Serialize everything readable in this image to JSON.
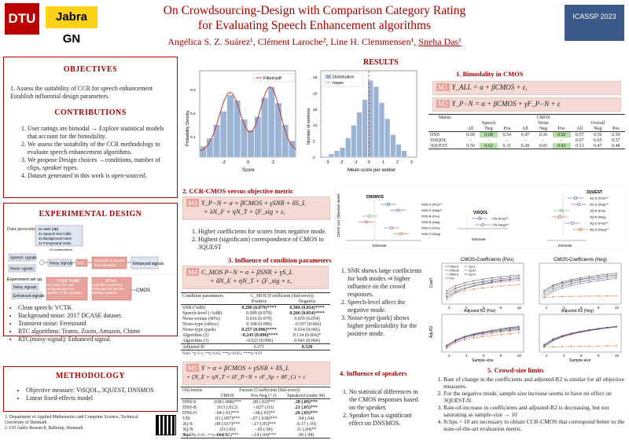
{
  "header": {
    "title_line1": "On Crowdsourcing-Design with Comparison Category Rating",
    "title_line2": "for Evaluating Speech Enhancement algorithms",
    "authors_prefix": "Angélica S. Z. Suárez¹, Clément Laroche², Line H. Clemmensen¹, ",
    "authors_underlined": "Sneha Das¹",
    "logo_dtu": "DTU",
    "logo_jabra": "Jabra GN",
    "logo_conf": "ICASSP 2023"
  },
  "objectives": {
    "heading": "OBJECTIVES",
    "items": [
      "1. Assess the suitability of CCR for speech enhancement",
      "Establish influential design parameters."
    ]
  },
  "contributions": {
    "heading": "CONTRIBUTIONS",
    "items": [
      "User ratings are bimodal → Explore statistical models that account for the bimodality.",
      "We assess the suitability of the CCR methodology to evaluate speech enhancement algorithms.",
      "We propose Design choices →conditions, number of clips, speaker types.",
      "Dataset generated in this work is open-sourced."
    ]
  },
  "experimental": {
    "heading": "EXPERIMENTAL DESIGN",
    "diagram": {
      "data_generation": "Data generation",
      "gen_lines": [
        "2x SNR (dB)",
        "2x Speech level (dB)",
        "3x Background noise",
        "1x Foreground noise"
      ],
      "combinations": "24 combinations",
      "speech_signals": "Speech signals",
      "noise_signals": "Noise signals",
      "noisy_signals": "Noisy signals",
      "rtc": "RTC",
      "playback": "Playback & Record",
      "normalisation": "Normalisation",
      "enhanced_signals": "Enhanced signals",
      "experiment_setup": "Experiment set up",
      "noisy_signals2": "Noisy signals",
      "enhanced_signals2": "Enhanced signals",
      "p808": "P.808 Toolkit",
      "p808_text": "Set audio files and configurations Run statistics of the answers",
      "mturk": "MTurk",
      "mturk_text": "Load files created by P.808 and run the test Manage answers",
      "cmos": "CMOS"
    },
    "bullets": [
      "Clean speech: VCTK",
      "Background noise: 2017 DCASE dataset.",
      "Transient noise: Freesound",
      "RTC algorithms: Teams, Zoom, Amazon, Chime",
      "RTC(noisy-signal): Enhanced signal."
    ]
  },
  "methodology": {
    "heading": "METHODOLOGY",
    "bullets": [
      "Objective measure: ViSQOL, 3QUEST, DNSMOS",
      "Linear fixed-effects model"
    ]
  },
  "affiliations": [
    "1. Department of Applied Mathematics and Computer Science, Technical University of Denmark",
    "2. GN Audio Research, Ballerup, Denmark"
  ],
  "results": {
    "heading": "RESULTS",
    "hist1": {
      "legend": "Fitted pdf",
      "xlabel": "Score",
      "ylabel": "Probability Density",
      "xticks": [
        "-2",
        "0",
        "2"
      ],
      "yticks": [
        "0.1",
        "0.2",
        "0.3"
      ]
    },
    "hist2": {
      "legend1": "Distribution",
      "legend2": "mean",
      "xlabel": "Mean score per worker",
      "ylabel": "Number of workers",
      "xticks": [
        "-3",
        "-2",
        "-1",
        "0",
        "1",
        "2",
        "3"
      ],
      "yticks": [
        "0",
        "5",
        "10",
        "15",
        "20",
        "25"
      ]
    },
    "bimodality": {
      "heading": "1. Bimodality in CMOS",
      "m1_tag": "M1",
      "m1": "Y_ALL = α + βCMOS + ε,",
      "m2_tag": "M2",
      "m2": "Y_P−N = α + βCMOS + γF_P−N + ε",
      "table": {
        "metric_label": "Metric",
        "cmos_label": "CMOS",
        "groups": [
          "Speech",
          "Noise",
          "Overall"
        ],
        "cols": [
          "All",
          "Neg",
          "Pos",
          "All",
          "Neg",
          "Pos",
          "All",
          "Neg",
          "Pos"
        ],
        "rows": [
          {
            "name": "DNS",
            "vals": [
              "0.69",
              "0.68",
              "0.54",
              "0.47",
              "0.36",
              "0.50",
              "0.57",
              "0.56",
              "0.50"
            ]
          },
          {
            "name": "ViSQOL",
            "vals": [
              "-",
              "-",
              "-",
              "-",
              "-",
              "-",
              "0.67",
              "0.65",
              "0.57"
            ]
          },
          {
            "name": "3QUEST",
            "vals": [
              "0.50",
              "0.62",
              "0.31",
              "0.28",
              "0.05",
              "0.43",
              "0.53",
              "0.47",
              "0.48"
            ]
          }
        ]
      }
    },
    "ccr": {
      "heading": "2. CCR-CMOS versus objective metric",
      "m3_tag": "M3",
      "m3_l1": "Y_P−N = α + βCMOS + γSNR + δS_L",
      "m3_l2": "+ λN_F + ηN_T + ζF_sig + ε,",
      "points": [
        "Higher coefficients for scores from negative mode.",
        "Highest (significant) correspondence of CMOS to 3QUEST"
      ],
      "forest": {
        "ylabel": "CMOS (vs) Objective metric",
        "dnsmos": "DNSMOS",
        "visqol": "ViSQOL",
        "quest": "3QUEST",
        "estimate": "Estimate",
        "dns_labels": [
          "DNS-S (Pos)**",
          "DNS-S (Neg)**",
          "DNS-B (Pos)",
          "DNS-B (Neg)",
          "DNS-O (Pos)",
          "DNS-O (Neg)"
        ],
        "vis_labels": [
          "VIS (Pos)**",
          "VIS (Neg)**"
        ],
        "q_labels": [
          "3Q-S (Pos)**",
          "3Q-S (Neg)**",
          "3Q-N (Pos)",
          "3Q-N (Neg)",
          "3Q-O (Pos)**",
          "3Q-O (Neg)**"
        ],
        "dns_ticks": [
          "-0.2",
          "0.0",
          "0.2",
          "0.4"
        ],
        "vis_ticks": [
          "0.0",
          "0.2",
          "0.4"
        ],
        "q_ticks": [
          "-0.4",
          "0.0",
          "0.4"
        ]
      }
    },
    "influence": {
      "heading": "3. Influence of condition parameters",
      "m4_tag": "M4",
      "m4_l1": "C_MOS P−N = α + βSNR + γS_L",
      "m4_l2": "+ δN_E + ηN_T + ζF_sig + ε,",
      "table": {
        "col0": "Condition parameters",
        "header": "C_MOS (Coefficient (Std-error))",
        "col1": "Positive",
        "col2": "Negative",
        "rows": [
          [
            "SNR (%dB)",
            "0.298 (0.079)****",
            "0.384 (0.054)****"
          ],
          [
            "Speech-level (-%dB)",
            "0.099 (0.079)",
            "0.260 (0.054)****"
          ],
          [
            "Noise-events (90%)",
            "0.016 (0.079)",
            "0.059 (0.054)"
          ],
          [
            "Noise-type (office)",
            "0.108 (0.096)",
            "−0.107 (0.066)"
          ],
          [
            "Noise-type (park)",
            "0.257 (0.096)****",
            "0.014 (0.066)"
          ],
          [
            "Algorithm (2)",
            "−0.243 (0.096)****",
            "0.134 (0.066)*"
          ],
          [
            "Algorithm (3)",
            "−0.023 (0.096)",
            "0.041 (0.066)"
          ],
          [
            "Adjusted R²",
            "0.271",
            "0.520"
          ]
        ],
        "note": "Note: *p<0.1; **p<0.05; ***p<0.025; ****p<0.01"
      },
      "points": [
        "SNR shows large coefficients for both modes ⇒ higher influence on the crowd responses.",
        "Speech-level affect the negative mode.",
        "Noise-type (park) shows higher predictability for the positive mode."
      ]
    },
    "speakers": {
      "heading": "4. Influence of speakers",
      "m5_tag": "M5",
      "m5_l1": "Y = α + βCMOS + γSNR + δS_L",
      "m5_l2": "+ ζN_E + ηN_T + λF_P−N + νF_Sp + θF_Ct + ε",
      "table": {
        "col0": "Obj metric",
        "header": "Factors (Coefficient (Std-error))",
        "cols": [
          "CMOS",
          "Pos-Neg (+1)",
          "Speaker(Gender M)"
        ],
        "rows": [
          [
            "DNS-S",
            ".038 (.008)***",
            ".08 (.02)***",
            ".38 (.09)***"
          ],
          [
            "DNS-B",
            ".013 (.012)",
            "-.027 (.03)",
            ".21 (.05)***"
          ],
          [
            "DNS-O",
            ".04 (.01)***",
            "-.08 (.03)**",
            ".26 (.05)***"
          ],
          [
            "VIS",
            ".03 (.007)***",
            "-.07 (.018)***",
            ".04 (.04)"
          ],
          [
            "3Q-S",
            ".08 (.017)***",
            "-.17 (.05)***",
            "-0.17 (.10)"
          ],
          [
            "3Q-N",
            ".03 (.02)",
            "-.05 (.06)",
            ".11 (.04)**"
          ],
          [
            "3Q-O",
            ".06 (.02)***",
            "-.14 (.04)***",
            ".06 (.08)"
          ]
        ],
        "note": "Note: *p<0.05; ***p<0.0071"
      },
      "points": [
        "No statistical differences in the CMOS responses based on the speaker.",
        "Speaker has a significant effect on DNSMOS."
      ]
    },
    "crowd": {
      "heading": "5. Crowd-size limits",
      "plot_pos_title": "CMOS-Coefficients (Pos)",
      "plot_neg_title": "CMOS-Coefficients (Neg)",
      "ylabel_coef": "Coeff.",
      "ylabel_adj": "Adj-R2",
      "xlabel_adj": "Adjusted R2 (Pos)",
      "xlabel_adj_neg": "Adjusted R2 (Neg)",
      "xlabel_size": "Sample-size",
      "xticks": [
        "2",
        "4",
        "6",
        "8",
        "10"
      ],
      "legend": [
        "DNS-S",
        "DNS-B",
        "DNS-O",
        "VIS",
        "3Q-S",
        "3Q-N",
        "3Q-O"
      ],
      "points": [
        "Rate of change in the coefficients and adjusted-R2 is similar for all objective measures.",
        "For the negative mode, sample size increase seems to have no effect on 3QUEST-N.",
        "Rate-of-increase in coefficients and adjusted-R2 is decreasing, but not saturating as sample-size → 10",
        "#clips > 10 are necessary to obtain CCR-CMOS that correspond better to the state-of-the-art evaluation metric."
      ]
    }
  },
  "colors": {
    "accent": "#aa0000",
    "eq_bg": "#f6d8d4",
    "highlight": "#b7e0a8",
    "hist": "#9bb3d4"
  }
}
